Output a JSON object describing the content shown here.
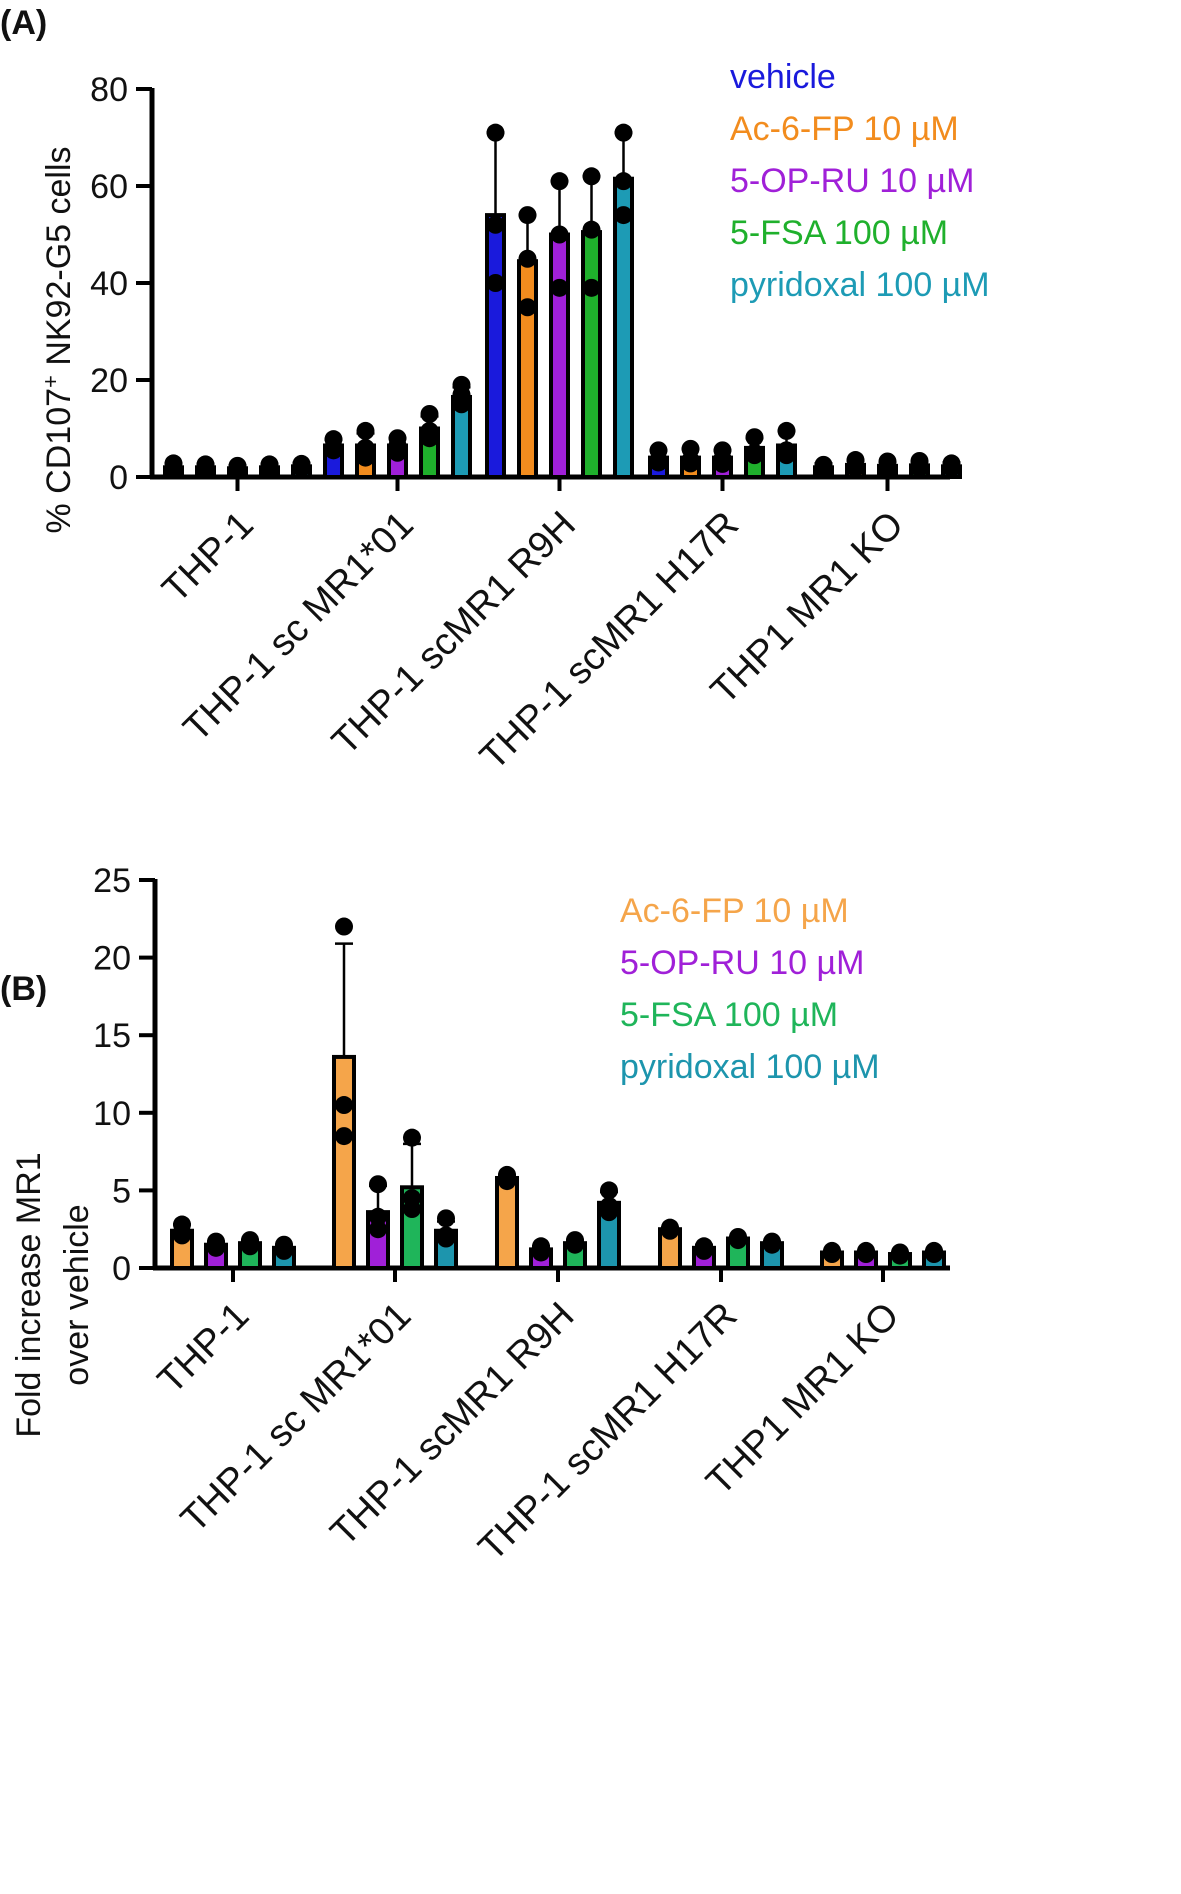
{
  "chart_data": [
    {
      "panel_label": "(A)",
      "type": "bar",
      "ylabel_main": "% CD107",
      "ylabel_sup": "+",
      "ylabel_rest": " NK92-G5 cells",
      "ylim": [
        0,
        80
      ],
      "yticks": [
        "0",
        "20",
        "40",
        "60",
        "80"
      ],
      "categories": [
        "THP-1",
        "THP-1 sc MR1*01",
        "THP-1 scMR1 R9H",
        "THP-1 scMR1 H17R",
        "THP1 MR1 KO"
      ],
      "legend": [
        {
          "label": "vehicle",
          "color": "#1a1adc"
        },
        {
          "label": "Ac-6-FP 10 µM",
          "color": "#f28c1e"
        },
        {
          "label": "5-OP-RU 10 µM",
          "color": "#a020d8"
        },
        {
          "label": "5-FSA 100 µM",
          "color": "#1fb02c"
        },
        {
          "label": "pyridoxal 100 µM",
          "color": "#1d9bb5"
        }
      ],
      "series": [
        {
          "name": "vehicle",
          "color": "#1a1adc",
          "values": [
            2.0,
            6.5,
            54,
            4.0,
            2.0
          ],
          "err": [
            0.8,
            1.2,
            17,
            1.5,
            0.8
          ],
          "points": [
            [
              2.8,
              1.8,
              1.4
            ],
            [
              7.8,
              6.2,
              5.5
            ],
            [
              71,
              40,
              52
            ],
            [
              5.5,
              3.5,
              3.0
            ],
            [
              2.5,
              1.8,
              1.6
            ]
          ]
        },
        {
          "name": "Ac-6-FP 10 µM",
          "color": "#f28c1e",
          "values": [
            2.0,
            6.5,
            44.5,
            4.0,
            2.5
          ],
          "err": [
            0.7,
            2.5,
            9.5,
            1.8,
            0.9
          ],
          "points": [
            [
              2.6,
              1.8,
              1.5
            ],
            [
              9.5,
              6.0,
              4.0
            ],
            [
              54,
              45,
              35
            ],
            [
              5.8,
              3.5,
              2.8
            ],
            [
              3.5,
              2.2,
              1.8
            ]
          ]
        },
        {
          "name": "5-OP-RU 10 µM",
          "color": "#a020d8",
          "values": [
            1.8,
            6.5,
            50,
            4.0,
            2.3
          ],
          "err": [
            0.6,
            1.5,
            11,
            1.5,
            0.8
          ],
          "points": [
            [
              2.3,
              1.6,
              1.4
            ],
            [
              8.0,
              6.5,
              5.0
            ],
            [
              61,
              50,
              39
            ],
            [
              5.5,
              3.8,
              2.7
            ],
            [
              3.2,
              2.0,
              1.7
            ]
          ]
        },
        {
          "name": "5-FSA 100 µM",
          "color": "#1fb02c",
          "values": [
            2.0,
            10,
            50.5,
            6.0,
            2.4
          ],
          "err": [
            0.7,
            2.5,
            11.5,
            2.0,
            0.8
          ],
          "points": [
            [
              2.6,
              1.8,
              1.5
            ],
            [
              13,
              9.5,
              8.0
            ],
            [
              62,
              51,
              39
            ],
            [
              8.2,
              5.0,
              4.5
            ],
            [
              3.3,
              2.1,
              1.8
            ]
          ]
        },
        {
          "name": "pyridoxal 100 µM",
          "color": "#1d9bb5",
          "values": [
            2.2,
            16.5,
            61.5,
            6.5,
            2.2
          ],
          "err": [
            0.7,
            2.0,
            9.5,
            3.0,
            0.8
          ],
          "points": [
            [
              2.7,
              2.0,
              1.8
            ],
            [
              19,
              17,
              15
            ],
            [
              71,
              61,
              54
            ],
            [
              9.5,
              5.5,
              4.5
            ],
            [
              2.8,
              2.0,
              1.8
            ]
          ]
        }
      ]
    },
    {
      "panel_label": "(B)",
      "type": "bar",
      "ylabel_line1": "Fold increase MR1",
      "ylabel_line2": "over vehicle",
      "ylim": [
        0,
        25
      ],
      "yticks": [
        "0",
        "5",
        "10",
        "15",
        "20",
        "25"
      ],
      "categories": [
        "THP-1",
        "THP-1 sc MR1*01",
        "THP-1 scMR1 R9H",
        "THP-1 scMR1 H17R",
        "THP1 MR1 KO"
      ],
      "legend": [
        {
          "label": "Ac-6-FP 10 µM",
          "color": "#f5a54a"
        },
        {
          "label": "5-OP-RU 10 µM",
          "color": "#a020d8"
        },
        {
          "label": "5-FSA 100 µM",
          "color": "#1fb55a"
        },
        {
          "label": "pyridoxal 100 µM",
          "color": "#1d95ad"
        }
      ],
      "series": [
        {
          "name": "Ac-6-FP 10 µM",
          "color": "#f5a54a",
          "values": [
            2.4,
            13.6,
            5.8,
            2.5,
            1.0
          ],
          "err": [
            0.4,
            7.3,
            0.2,
            0.1,
            0.1
          ],
          "points": [
            [
              2.8,
              2.3,
              2.1
            ],
            [
              22,
              10.5,
              8.5
            ],
            [
              6.0,
              5.8,
              5.6
            ],
            [
              2.6,
              2.5,
              2.4
            ],
            [
              1.1,
              1.0,
              0.9
            ]
          ]
        },
        {
          "name": "5-OP-RU 10 µM",
          "color": "#a020d8",
          "values": [
            1.5,
            3.6,
            1.2,
            1.3,
            1.0
          ],
          "err": [
            0.2,
            1.7,
            0.2,
            0.2,
            0.1
          ],
          "points": [
            [
              1.7,
              1.5,
              1.3
            ],
            [
              5.4,
              3.3,
              2.5
            ],
            [
              1.4,
              1.2,
              1.0
            ],
            [
              1.4,
              1.3,
              1.1
            ],
            [
              1.1,
              1.0,
              0.9
            ]
          ]
        },
        {
          "name": "5-FSA 100 µM",
          "color": "#1fb55a",
          "values": [
            1.6,
            5.2,
            1.6,
            1.9,
            0.9
          ],
          "err": [
            0.2,
            2.8,
            0.2,
            0.1,
            0.1
          ],
          "points": [
            [
              1.8,
              1.6,
              1.4
            ],
            [
              8.4,
              4.5,
              3.8
            ],
            [
              1.8,
              1.6,
              1.5
            ],
            [
              2.0,
              1.9,
              1.8
            ],
            [
              1.0,
              0.9,
              0.8
            ]
          ]
        },
        {
          "name": "pyridoxal 100 µM",
          "color": "#1d95ad",
          "values": [
            1.3,
            2.4,
            4.2,
            1.6,
            1.0
          ],
          "err": [
            0.2,
            0.6,
            0.7,
            0.1,
            0.1
          ],
          "points": [
            [
              1.5,
              1.3,
              1.1
            ],
            [
              3.2,
              2.1,
              1.9
            ],
            [
              5.0,
              4.0,
              3.6
            ],
            [
              1.7,
              1.6,
              1.5
            ],
            [
              1.1,
              1.0,
              0.9
            ]
          ]
        }
      ]
    }
  ]
}
